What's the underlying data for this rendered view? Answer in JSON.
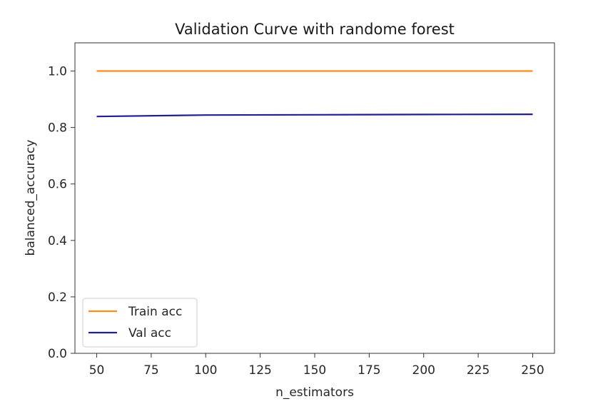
{
  "chart_data": {
    "type": "line",
    "title": "Validation Curve with randome forest",
    "xlabel": "n_estimators",
    "ylabel": "balanced_accuracy",
    "xlim": [
      40,
      260
    ],
    "ylim": [
      0.0,
      1.1
    ],
    "xticks": [
      50,
      75,
      100,
      125,
      150,
      175,
      200,
      225,
      250
    ],
    "yticks": [
      0.0,
      0.2,
      0.4,
      0.6,
      0.8,
      1.0
    ],
    "xtick_labels": [
      "50",
      "75",
      "100",
      "125",
      "150",
      "175",
      "200",
      "225",
      "250"
    ],
    "ytick_labels": [
      "0.0",
      "0.2",
      "0.4",
      "0.6",
      "0.8",
      "1.0"
    ],
    "grid": false,
    "legend_position": "lower-left",
    "series": [
      {
        "name": "Train acc",
        "color": "#ff8c1a",
        "x": [
          50,
          100,
          150,
          200,
          250
        ],
        "y": [
          1.0,
          1.0,
          1.0,
          1.0,
          1.0
        ]
      },
      {
        "name": "Val acc",
        "color": "#1f1f8f",
        "x": [
          50,
          100,
          150,
          200,
          250
        ],
        "y": [
          0.839,
          0.844,
          0.845,
          0.846,
          0.847
        ]
      }
    ]
  }
}
